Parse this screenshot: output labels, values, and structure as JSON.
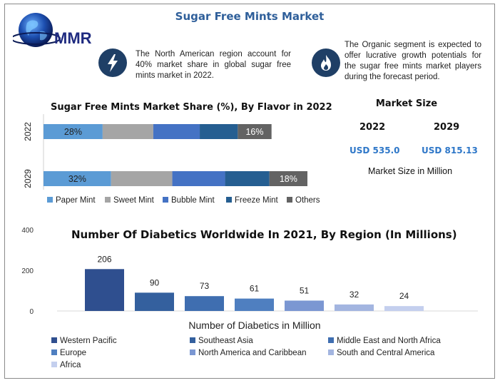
{
  "header": {
    "title": "Sugar Free Mints Market",
    "logo_text": "MMR"
  },
  "notes": {
    "left": "The North American region account for 40% market share in global sugar free mints market in 2022.",
    "left_icon": "lightning-bolt-icon",
    "right": "The Organic segment is expected to offer lucrative growth potentials for the sugar free mints market players during the forecast period.",
    "right_icon": "flame-icon"
  },
  "market_size": {
    "title": "Market Size",
    "year_1": "2022",
    "value_1": "USD 535.0",
    "year_2": "2029",
    "value_2": "USD 815.13",
    "note": "Market Size in Million"
  },
  "colors": {
    "paper_mint": "#5b9bd5",
    "sweet_mint": "#a5a5a5",
    "bubble_mint": "#4472c4",
    "freeze_mint": "#255e91",
    "others": "#636363",
    "title_blue": "#2f5f9a",
    "value_blue": "#2e77c8"
  },
  "chart_data": [
    {
      "type": "bar",
      "orientation": "horizontal",
      "stacked": true,
      "title": "Sugar Free Mints Market Share (%), By Flavor in 2022",
      "categories": [
        "2022",
        "2029"
      ],
      "series": [
        {
          "name": "Paper Mint",
          "values": [
            28,
            32
          ],
          "labels": [
            "28%",
            "32%"
          ]
        },
        {
          "name": "Sweet Mint",
          "values": [
            24,
            29
          ],
          "labels": [
            "",
            ""
          ]
        },
        {
          "name": "Bubble Mint",
          "values": [
            22,
            25
          ],
          "labels": [
            "",
            ""
          ]
        },
        {
          "name": "Freeze Mint",
          "values": [
            18,
            21
          ],
          "labels": [
            "",
            ""
          ]
        },
        {
          "name": "Others",
          "values": [
            16,
            18
          ],
          "labels": [
            "16%",
            "18%"
          ]
        }
      ],
      "xlim": [
        0,
        125
      ],
      "grid": false,
      "legend": "bottom"
    },
    {
      "type": "bar",
      "title": "Number Of Diabetics Worldwide In 2021, By Region (In Millions)",
      "xlabel": "Number of Diabetics in Million",
      "ylabel": "",
      "categories": [
        "Western Pacific",
        "Southeast Asia",
        "Middle East and North Africa",
        "Europe",
        "North America and Caribbean",
        "South and Central America",
        "Africa"
      ],
      "values": [
        206,
        90,
        73,
        61,
        51,
        32,
        24
      ],
      "value_labels": [
        "206",
        "90",
        "73",
        "61",
        "51",
        "32",
        "24"
      ],
      "bar_colors": [
        "#2f4f8f",
        "#34609e",
        "#3f6eb0",
        "#4f7fc0",
        "#7b97d2",
        "#a3b5e0",
        "#c4cfee"
      ],
      "yticks": [
        "0",
        "200",
        "400"
      ],
      "ylim": [
        0,
        400
      ],
      "grid": false,
      "legend": "bottom"
    }
  ]
}
